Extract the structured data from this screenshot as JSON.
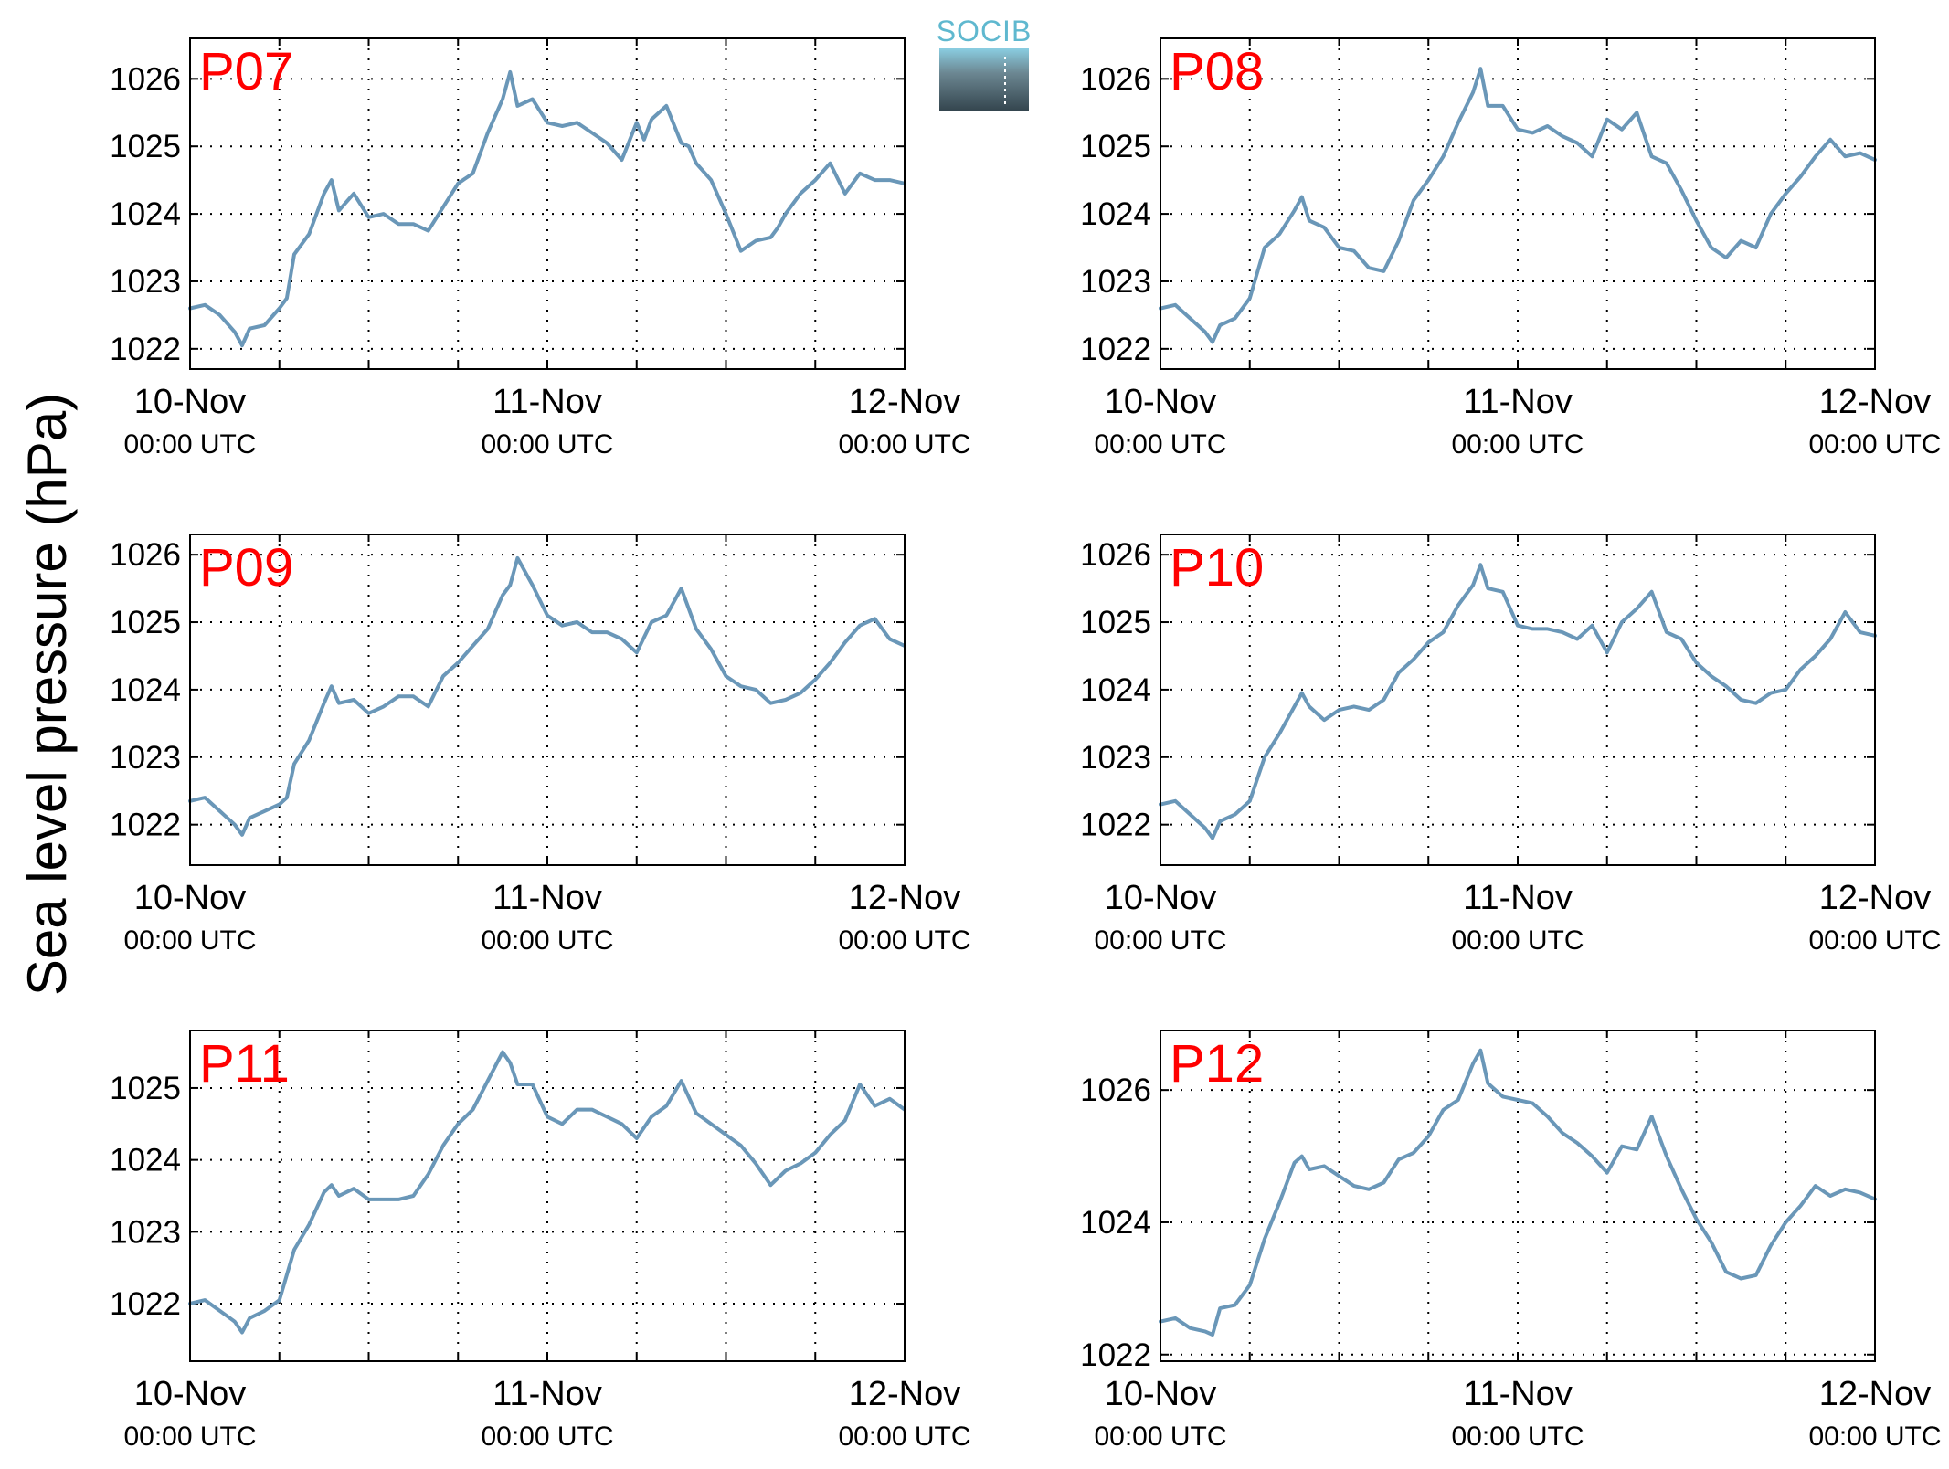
{
  "figure": {
    "ylabel": "Sea level pressure (hPa)",
    "logo_text": "SOCIB",
    "line_color": "#6a97b8",
    "label_color": "#ff0000"
  },
  "chart_data": [
    {
      "type": "line",
      "panel_label": "P07",
      "xlabels": [
        [
          "10-Nov",
          "00:00 UTC"
        ],
        [
          "11-Nov",
          "00:00 UTC"
        ],
        [
          "12-Nov",
          "00:00 UTC"
        ]
      ],
      "xlim": [
        0,
        48
      ],
      "xgrid": [
        6,
        12,
        18,
        24,
        30,
        36,
        42
      ],
      "ylim": [
        1021.7,
        1026.6
      ],
      "yticks": [
        1022,
        1023,
        1024,
        1025,
        1026
      ],
      "grid": true,
      "series": [
        {
          "x": [
            0,
            1,
            2,
            3,
            3.5,
            4,
            5,
            6,
            6.5,
            7,
            8,
            9,
            9.5,
            10,
            11,
            12,
            13,
            14,
            15,
            16,
            17,
            18,
            19,
            20,
            21,
            21.5,
            22,
            23,
            24,
            25,
            26,
            27,
            28,
            29,
            30,
            30.5,
            31,
            32,
            33,
            33.5,
            34,
            35,
            36,
            37,
            38,
            39,
            39.5,
            40,
            41,
            42,
            43,
            44,
            45,
            46,
            47,
            48
          ],
          "y": [
            1022.6,
            1022.65,
            1022.5,
            1022.25,
            1022.05,
            1022.3,
            1022.35,
            1022.6,
            1022.75,
            1023.4,
            1023.7,
            1024.3,
            1024.5,
            1024.05,
            1024.3,
            1023.95,
            1024.0,
            1023.85,
            1023.85,
            1023.75,
            1024.1,
            1024.45,
            1024.6,
            1025.2,
            1025.7,
            1026.1,
            1025.6,
            1025.7,
            1025.35,
            1025.3,
            1025.35,
            1025.2,
            1025.05,
            1024.8,
            1025.35,
            1025.1,
            1025.4,
            1025.6,
            1025.05,
            1025.0,
            1024.75,
            1024.5,
            1024.0,
            1023.45,
            1023.6,
            1023.65,
            1023.8,
            1024.0,
            1024.3,
            1024.5,
            1024.75,
            1024.3,
            1024.6,
            1024.5,
            1024.5,
            1024.45
          ]
        }
      ]
    },
    {
      "type": "line",
      "panel_label": "P08",
      "xlabels": [
        [
          "10-Nov",
          "00:00 UTC"
        ],
        [
          "11-Nov",
          "00:00 UTC"
        ],
        [
          "12-Nov",
          "00:00 UTC"
        ]
      ],
      "xlim": [
        0,
        48
      ],
      "xgrid": [
        6,
        12,
        18,
        24,
        30,
        36,
        42
      ],
      "ylim": [
        1021.7,
        1026.6
      ],
      "yticks": [
        1022,
        1023,
        1024,
        1025,
        1026
      ],
      "grid": true,
      "series": [
        {
          "x": [
            0,
            1,
            2,
            3,
            3.5,
            4,
            5,
            6,
            7,
            8,
            9,
            9.5,
            10,
            11,
            12,
            13,
            14,
            15,
            16,
            17,
            18,
            19,
            20,
            21,
            21.5,
            22,
            23,
            24,
            25,
            26,
            27,
            28,
            29,
            30,
            31,
            32,
            33,
            34,
            35,
            36,
            37,
            38,
            39,
            40,
            41,
            42,
            43,
            44,
            45,
            46,
            47,
            48
          ],
          "y": [
            1022.6,
            1022.65,
            1022.45,
            1022.25,
            1022.1,
            1022.35,
            1022.45,
            1022.75,
            1023.5,
            1023.7,
            1024.05,
            1024.25,
            1023.9,
            1023.8,
            1023.5,
            1023.45,
            1023.2,
            1023.15,
            1023.6,
            1024.2,
            1024.5,
            1024.85,
            1025.35,
            1025.8,
            1026.15,
            1025.6,
            1025.6,
            1025.25,
            1025.2,
            1025.3,
            1025.15,
            1025.05,
            1024.85,
            1025.4,
            1025.25,
            1025.5,
            1024.85,
            1024.75,
            1024.35,
            1023.9,
            1023.5,
            1023.35,
            1023.6,
            1023.5,
            1024.0,
            1024.3,
            1024.55,
            1024.85,
            1025.1,
            1024.85,
            1024.9,
            1024.8
          ]
        }
      ]
    },
    {
      "type": "line",
      "panel_label": "P09",
      "xlabels": [
        [
          "10-Nov",
          "00:00 UTC"
        ],
        [
          "11-Nov",
          "00:00 UTC"
        ],
        [
          "12-Nov",
          "00:00 UTC"
        ]
      ],
      "xlim": [
        0,
        48
      ],
      "xgrid": [
        6,
        12,
        18,
        24,
        30,
        36,
        42
      ],
      "ylim": [
        1021.4,
        1026.3
      ],
      "yticks": [
        1022,
        1023,
        1024,
        1025,
        1026
      ],
      "grid": true,
      "series": [
        {
          "x": [
            0,
            1,
            2,
            3,
            3.5,
            4,
            5,
            6,
            6.5,
            7,
            8,
            9,
            9.5,
            10,
            11,
            12,
            13,
            14,
            15,
            16,
            17,
            18,
            19,
            20,
            21,
            21.5,
            22,
            23,
            24,
            25,
            26,
            27,
            28,
            29,
            30,
            31,
            32,
            33,
            34,
            35,
            36,
            37,
            38,
            39,
            40,
            41,
            42,
            43,
            44,
            45,
            46,
            47,
            48
          ],
          "y": [
            1022.35,
            1022.4,
            1022.2,
            1022.0,
            1021.85,
            1022.1,
            1022.2,
            1022.3,
            1022.4,
            1022.9,
            1023.25,
            1023.8,
            1024.05,
            1023.8,
            1023.85,
            1023.65,
            1023.75,
            1023.9,
            1023.9,
            1023.75,
            1024.2,
            1024.4,
            1024.65,
            1024.9,
            1025.4,
            1025.55,
            1025.95,
            1025.55,
            1025.1,
            1024.95,
            1025.0,
            1024.85,
            1024.85,
            1024.75,
            1024.55,
            1025.0,
            1025.1,
            1025.5,
            1024.9,
            1024.6,
            1024.2,
            1024.05,
            1024.0,
            1023.8,
            1023.85,
            1023.95,
            1024.15,
            1024.4,
            1024.7,
            1024.95,
            1025.05,
            1024.75,
            1024.65
          ]
        }
      ]
    },
    {
      "type": "line",
      "panel_label": "P10",
      "xlabels": [
        [
          "10-Nov",
          "00:00 UTC"
        ],
        [
          "11-Nov",
          "00:00 UTC"
        ],
        [
          "12-Nov",
          "00:00 UTC"
        ]
      ],
      "xlim": [
        0,
        48
      ],
      "xgrid": [
        6,
        12,
        18,
        24,
        30,
        36,
        42
      ],
      "ylim": [
        1021.4,
        1026.3
      ],
      "yticks": [
        1022,
        1023,
        1024,
        1025,
        1026
      ],
      "grid": true,
      "series": [
        {
          "x": [
            0,
            1,
            2,
            3,
            3.5,
            4,
            5,
            6,
            7,
            8,
            9,
            9.5,
            10,
            11,
            12,
            13,
            14,
            15,
            16,
            17,
            18,
            19,
            20,
            21,
            21.5,
            22,
            23,
            24,
            25,
            26,
            27,
            28,
            29,
            30,
            31,
            32,
            33,
            34,
            35,
            36,
            37,
            38,
            39,
            40,
            41,
            42,
            43,
            44,
            45,
            46,
            47,
            48
          ],
          "y": [
            1022.3,
            1022.35,
            1022.15,
            1021.95,
            1021.8,
            1022.05,
            1022.15,
            1022.35,
            1023.0,
            1023.35,
            1023.75,
            1023.95,
            1023.75,
            1023.55,
            1023.7,
            1023.75,
            1023.7,
            1023.85,
            1024.25,
            1024.45,
            1024.7,
            1024.85,
            1025.25,
            1025.55,
            1025.85,
            1025.5,
            1025.45,
            1024.95,
            1024.9,
            1024.9,
            1024.85,
            1024.75,
            1024.95,
            1024.55,
            1025.0,
            1025.2,
            1025.45,
            1024.85,
            1024.75,
            1024.4,
            1024.2,
            1024.05,
            1023.85,
            1023.8,
            1023.95,
            1024.0,
            1024.3,
            1024.5,
            1024.75,
            1025.15,
            1024.85,
            1024.8
          ]
        }
      ]
    },
    {
      "type": "line",
      "panel_label": "P11",
      "xlabels": [
        [
          "10-Nov",
          "00:00 UTC"
        ],
        [
          "11-Nov",
          "00:00 UTC"
        ],
        [
          "12-Nov",
          "00:00 UTC"
        ]
      ],
      "xlim": [
        0,
        48
      ],
      "xgrid": [
        6,
        12,
        18,
        24,
        30,
        36,
        42
      ],
      "ylim": [
        1021.2,
        1025.8
      ],
      "yticks": [
        1022,
        1023,
        1024,
        1025
      ],
      "grid": true,
      "series": [
        {
          "x": [
            0,
            1,
            2,
            3,
            3.5,
            4,
            5,
            6,
            7,
            8,
            9,
            9.5,
            10,
            11,
            12,
            13,
            14,
            15,
            16,
            17,
            18,
            19,
            20,
            21,
            21.5,
            22,
            23,
            24,
            25,
            26,
            27,
            28,
            29,
            30,
            31,
            32,
            33,
            34,
            35,
            36,
            37,
            38,
            39,
            40,
            41,
            42,
            43,
            44,
            45,
            46,
            47,
            48
          ],
          "y": [
            1022.0,
            1022.05,
            1021.9,
            1021.75,
            1021.6,
            1021.8,
            1021.9,
            1022.05,
            1022.75,
            1023.1,
            1023.55,
            1023.65,
            1023.5,
            1023.6,
            1023.45,
            1023.45,
            1023.45,
            1023.5,
            1023.8,
            1024.2,
            1024.5,
            1024.7,
            1025.1,
            1025.5,
            1025.35,
            1025.05,
            1025.05,
            1024.6,
            1024.5,
            1024.7,
            1024.7,
            1024.6,
            1024.5,
            1024.3,
            1024.6,
            1024.75,
            1025.1,
            1024.65,
            1024.5,
            1024.35,
            1024.2,
            1023.95,
            1023.65,
            1023.85,
            1023.95,
            1024.1,
            1024.35,
            1024.55,
            1025.05,
            1024.75,
            1024.85,
            1024.7
          ]
        }
      ]
    },
    {
      "type": "line",
      "panel_label": "P12",
      "xlabels": [
        [
          "10-Nov",
          "00:00 UTC"
        ],
        [
          "11-Nov",
          "00:00 UTC"
        ],
        [
          "12-Nov",
          "00:00 UTC"
        ]
      ],
      "xlim": [
        0,
        48
      ],
      "xgrid": [
        6,
        12,
        18,
        24,
        30,
        36,
        42
      ],
      "ylim": [
        1021.9,
        1026.9
      ],
      "yticks": [
        1022,
        1024,
        1026
      ],
      "grid": true,
      "series": [
        {
          "x": [
            0,
            1,
            2,
            3,
            3.5,
            4,
            5,
            6,
            7,
            8,
            9,
            9.5,
            10,
            11,
            12,
            13,
            14,
            15,
            16,
            17,
            18,
            19,
            20,
            21,
            21.5,
            22,
            23,
            24,
            25,
            26,
            27,
            28,
            29,
            30,
            31,
            32,
            33,
            34,
            35,
            36,
            37,
            38,
            39,
            40,
            41,
            42,
            43,
            44,
            45,
            46,
            47,
            48
          ],
          "y": [
            1022.5,
            1022.55,
            1022.4,
            1022.35,
            1022.3,
            1022.7,
            1022.75,
            1023.05,
            1023.75,
            1024.3,
            1024.9,
            1025.0,
            1024.8,
            1024.85,
            1024.7,
            1024.55,
            1024.5,
            1024.6,
            1024.95,
            1025.05,
            1025.3,
            1025.7,
            1025.85,
            1026.4,
            1026.6,
            1026.1,
            1025.9,
            1025.85,
            1025.8,
            1025.6,
            1025.35,
            1025.2,
            1025.0,
            1024.75,
            1025.15,
            1025.1,
            1025.6,
            1025.0,
            1024.5,
            1024.05,
            1023.7,
            1023.25,
            1023.15,
            1023.2,
            1023.65,
            1024.0,
            1024.25,
            1024.55,
            1024.4,
            1024.5,
            1024.45,
            1024.35
          ]
        }
      ]
    }
  ]
}
